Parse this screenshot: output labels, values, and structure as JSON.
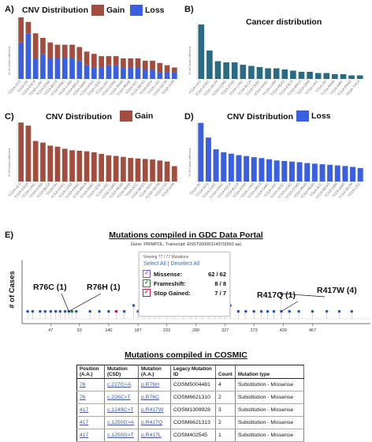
{
  "panels": {
    "a": {
      "letter": "A)",
      "title": "CNV Distribution",
      "legend": [
        {
          "label": "Gain",
          "color": "#a34d3e"
        },
        {
          "label": "Loss",
          "color": "#3a5fe0"
        }
      ]
    },
    "b": {
      "letter": "B)",
      "title": "Cancer distribution"
    },
    "c": {
      "letter": "C)",
      "title": "CNV Distribution",
      "legend": [
        {
          "label": "Gain",
          "color": "#a34d3e"
        }
      ]
    },
    "d": {
      "letter": "D)",
      "title": "CNV Distribution",
      "legend": [
        {
          "label": "Loss",
          "color": "#3a5fe0"
        }
      ]
    },
    "e": {
      "letter": "E)"
    }
  },
  "y_axis_label": "% of Cases Affected",
  "gdc": {
    "title": "Mutations compiled in GDC Data Portal",
    "subtitle": "Gene: PRIMPOL, Transcript: ENST00000314970(560 aa)",
    "filter": {
      "viewing": "Viewing 77 / 77 Mutations",
      "select_all": "Select All",
      "separator": " | ",
      "deselect_all": "Deselect All",
      "rows": [
        {
          "label": "Missense:",
          "count": "62 / 62",
          "color": "#7e57c2"
        },
        {
          "label": "Frameshift:",
          "count": "8 / 8",
          "color": "#2e7d32"
        },
        {
          "label": "Stop Gained:",
          "count": "7 / 7",
          "color": "#c2185b"
        }
      ]
    },
    "annotations": [
      "R76C (1)",
      "R76H (1)",
      "R417Q (1)",
      "R417W (4)"
    ],
    "y_label": "# of Cases"
  },
  "cosmic": {
    "title": "Mutations compiled in COSMIC",
    "headers": [
      "Position (A.A.)",
      "Mutation (CSD)",
      "Mutation (A.A.)",
      "Legacy Mutation ID",
      "Count",
      "Mutation type"
    ],
    "rows": [
      [
        "76",
        "c.227G>A",
        "p.R76H",
        "COSM5004481",
        "4",
        "Substitution - Missense"
      ],
      [
        "76",
        "c.226C>T",
        "p.R76C",
        "COSM6621310",
        "2",
        "Substitution - Missense"
      ],
      [
        "417",
        "c.1249C>T",
        "p.R417W",
        "COSM1309928",
        "3",
        "Substitution - Missense"
      ],
      [
        "417",
        "c.1250G>A",
        "p.R417Q",
        "COSM6621313",
        "2",
        "Substitution - Missense"
      ],
      [
        "417",
        "c.1250G>T",
        "p.R417L",
        "COSM402545",
        "1",
        "Substitution - Missense"
      ]
    ]
  },
  "chart_data": [
    {
      "type": "bar",
      "title": "CNV Distribution",
      "ylabel": "% of Cases Affected",
      "categories": [
        "TCGA-UCS",
        "TCGA-OV",
        "TCGA-ESCA",
        "TCGA-LUSC",
        "TCGA-STAD",
        "TCGA-BLCA",
        "TCGA-HNSC",
        "TCGA-LUAD",
        "TCGA-BRCA",
        "TCGA-SARC",
        "TCGA-UCEC",
        "TCGA-CESC",
        "TCGA-LIHC",
        "TCGA-COAD",
        "TCGA-PAAD",
        "TCGA-READ",
        "TCGA-ACC",
        "TCGA-MESO",
        "TCGA-KICH",
        "TCGA-LGG",
        "TCGA-SKCM",
        "TCGA-UVM"
      ],
      "series": [
        {
          "name": "Loss",
          "values": [
            16,
            20,
            9,
            11,
            9,
            9,
            9,
            9,
            8,
            6,
            5,
            5,
            6,
            6,
            5,
            5,
            5,
            4,
            4,
            3,
            3,
            3
          ]
        },
        {
          "name": "Gain",
          "values": [
            11,
            5,
            11,
            7,
            7,
            6,
            6,
            6,
            6,
            6,
            6,
            5,
            4,
            4,
            4,
            4,
            4,
            4,
            4,
            4,
            3,
            2
          ]
        }
      ]
    },
    {
      "type": "bar",
      "title": "Cancer distribution",
      "ylabel": "% of Cases Affected",
      "categories": [
        "TCGA-UCS",
        "TCGA-UCEC",
        "TCGA-SKCM",
        "TCGA-COAD",
        "TCGA-STAD",
        "TCGA-LUSC",
        "TCGA-BLCA",
        "TCGA-CESC",
        "TCGA-HNSC",
        "TCGA-LUAD",
        "TCGA-READ",
        "TCGA-ESCA",
        "TCGA-BRCA",
        "TCGA-GBM",
        "TCGA-LIHC",
        "TCGA-OV",
        "TCGA-PAAD",
        "TCGA-KIRC",
        "TCGA-PRAD",
        "TCGA-THCA"
      ],
      "values": [
        4.6,
        2.4,
        1.5,
        1.4,
        1.4,
        1.2,
        1.1,
        1.0,
        0.9,
        0.9,
        0.8,
        0.7,
        0.6,
        0.6,
        0.5,
        0.5,
        0.4,
        0.4,
        0.3,
        0.3
      ]
    },
    {
      "type": "bar",
      "title": "CNV Distribution",
      "ylabel": "% of Cases Affected",
      "series_name": "Gain",
      "categories": [
        "TCGA-UCS",
        "TCGA-ESCA",
        "TCGA-LUSC",
        "TCGA-STAD",
        "TCGA-BLCA",
        "TCGA-OV",
        "TCGA-UCEC",
        "TCGA-LUAD",
        "TCGA-HNSC",
        "TCGA-BRCA",
        "TCGA-SARC",
        "TCGA-CESC",
        "TCGA-LIHC",
        "TCGA-COAD",
        "TCGA-READ",
        "TCGA-PAAD",
        "TCGA-ACC",
        "TCGA-MESO",
        "TCGA-KICH",
        "TCGA-SKCM",
        "TCGA-LGG",
        "TCGA-UVM"
      ],
      "values": [
        11.5,
        10.9,
        7.9,
        7.6,
        7.0,
        6.8,
        6.4,
        6.1,
        6.0,
        5.9,
        5.7,
        5.4,
        5.1,
        5.0,
        4.8,
        4.6,
        4.5,
        4.4,
        4.3,
        4.1,
        3.9,
        3.0
      ]
    },
    {
      "type": "bar",
      "title": "CNV Distribution",
      "ylabel": "% of Cases Affected",
      "series_name": "Loss",
      "categories": [
        "TCGA-OV",
        "TCGA-UCS",
        "TCGA-LUSC",
        "TCGA-HNSC",
        "TCGA-ESCA",
        "TCGA-BLCA",
        "TCGA-STAD",
        "TCGA-LUAD",
        "TCGA-BRCA",
        "TCGA-SARC",
        "TCGA-LIHC",
        "TCGA-CESC",
        "TCGA-UCEC",
        "TCGA-COAD",
        "TCGA-PAAD",
        "TCGA-READ",
        "TCGA-ACC",
        "TCGA-MESO",
        "TCGA-GBM",
        "TCGA-KIRP",
        "TCGA-SKCM",
        "TCGA-LGG"
      ],
      "values": [
        20,
        15,
        11,
        10,
        9.5,
        9,
        8.7,
        8.3,
        8,
        7.6,
        7.2,
        7,
        6.8,
        6.6,
        6.3,
        6.1,
        5.9,
        5.7,
        5.5,
        5.3,
        5.0,
        4.6
      ]
    },
    {
      "type": "scatter",
      "title": "Mutations compiled in GDC Data Portal",
      "ylabel": "# of Cases",
      "x_ticks": [
        47,
        93,
        140,
        187,
        233,
        280,
        327,
        373,
        420,
        467
      ],
      "xlim": [
        1,
        560
      ],
      "points": [
        {
          "x": 10,
          "y": 1,
          "t": "m"
        },
        {
          "x": 18,
          "y": 1,
          "t": "m"
        },
        {
          "x": 30,
          "y": 1,
          "t": "m"
        },
        {
          "x": 38,
          "y": 1,
          "t": "m"
        },
        {
          "x": 47,
          "y": 1,
          "t": "m"
        },
        {
          "x": 55,
          "y": 1,
          "t": "m"
        },
        {
          "x": 62,
          "y": 1,
          "t": "m"
        },
        {
          "x": 70,
          "y": 1,
          "t": "m"
        },
        {
          "x": 76,
          "y": 1,
          "t": "m"
        },
        {
          "x": 81,
          "y": 1,
          "t": "f"
        },
        {
          "x": 88,
          "y": 1,
          "t": "m"
        },
        {
          "x": 110,
          "y": 1,
          "t": "m"
        },
        {
          "x": 125,
          "y": 1,
          "t": "m"
        },
        {
          "x": 140,
          "y": 1,
          "t": "m"
        },
        {
          "x": 152,
          "y": 1,
          "t": "s"
        },
        {
          "x": 165,
          "y": 1,
          "t": "m"
        },
        {
          "x": 180,
          "y": 2,
          "t": "m"
        },
        {
          "x": 187,
          "y": 1,
          "t": "m"
        },
        {
          "x": 196,
          "y": 1,
          "t": "m"
        },
        {
          "x": 205,
          "y": 1,
          "t": "m"
        },
        {
          "x": 214,
          "y": 1,
          "t": "m"
        },
        {
          "x": 222,
          "y": 1,
          "t": "m"
        },
        {
          "x": 233,
          "y": 1,
          "t": "m"
        },
        {
          "x": 245,
          "y": 1,
          "t": "m"
        },
        {
          "x": 260,
          "y": 1,
          "t": "m"
        },
        {
          "x": 272,
          "y": 1,
          "t": "m"
        },
        {
          "x": 280,
          "y": 1,
          "t": "m"
        },
        {
          "x": 290,
          "y": 2,
          "t": "m"
        },
        {
          "x": 300,
          "y": 1,
          "t": "m"
        },
        {
          "x": 310,
          "y": 1,
          "t": "f"
        },
        {
          "x": 318,
          "y": 1,
          "t": "m"
        },
        {
          "x": 327,
          "y": 1,
          "t": "m"
        },
        {
          "x": 335,
          "y": 2,
          "t": "m"
        },
        {
          "x": 348,
          "y": 1,
          "t": "m"
        },
        {
          "x": 360,
          "y": 1,
          "t": "m"
        },
        {
          "x": 373,
          "y": 1,
          "t": "m"
        },
        {
          "x": 385,
          "y": 1,
          "t": "m"
        },
        {
          "x": 395,
          "y": 1,
          "t": "m"
        },
        {
          "x": 405,
          "y": 1,
          "t": "m"
        },
        {
          "x": 417,
          "y": 4,
          "t": "m"
        },
        {
          "x": 417,
          "y": 1,
          "t": "m"
        },
        {
          "x": 430,
          "y": 1,
          "t": "m"
        },
        {
          "x": 445,
          "y": 1,
          "t": "m"
        },
        {
          "x": 467,
          "y": 1,
          "t": "m"
        },
        {
          "x": 490,
          "y": 1,
          "t": "m"
        },
        {
          "x": 510,
          "y": 1,
          "t": "m"
        },
        {
          "x": 530,
          "y": 1,
          "t": "m"
        }
      ]
    }
  ]
}
